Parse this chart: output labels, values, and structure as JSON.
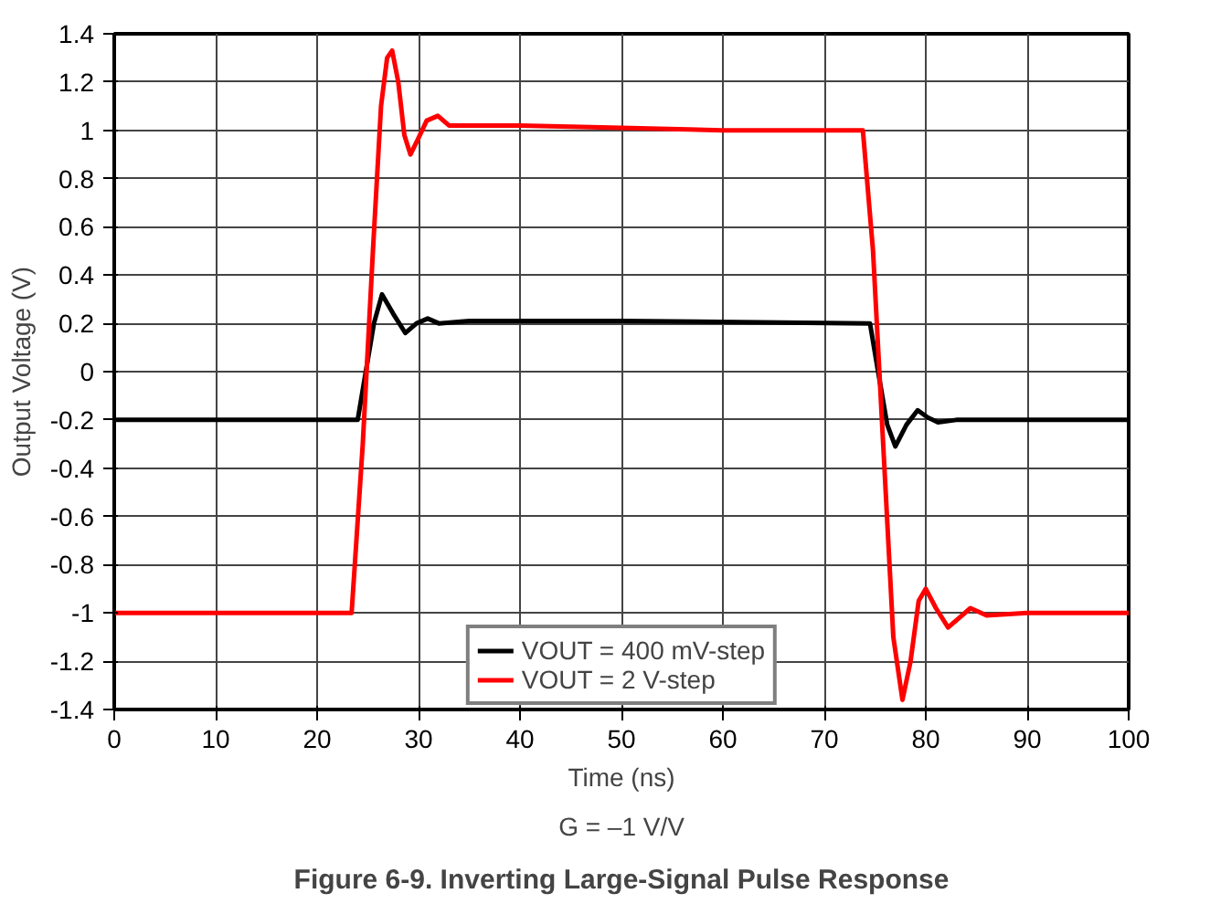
{
  "chart_data": {
    "type": "line",
    "title": "Figure 6-9. Inverting Large-Signal Pulse Response",
    "xlabel": "Time (ns)",
    "ylabel": "Output Voltage (V)",
    "annotations": [
      "G = –1 V/V"
    ],
    "xlim": [
      0,
      100
    ],
    "xticks": [
      0,
      10,
      20,
      30,
      40,
      50,
      60,
      70,
      80,
      90,
      100
    ],
    "ylim": [
      -1.4,
      1.4
    ],
    "yticks": [
      {
        "value": -1.4,
        "label": "-1.4"
      },
      {
        "value": -1.2,
        "label": "-1.2"
      },
      {
        "value": -1,
        "label": "-1"
      },
      {
        "value": -0.8,
        "label": "-0.8"
      },
      {
        "value": -0.6,
        "label": "-0.6"
      },
      {
        "value": -0.4,
        "label": "-0.4"
      },
      {
        "value": -0.2,
        "label": "-0.2"
      },
      0,
      {
        "value": 0.2,
        "label": "0.2"
      },
      {
        "value": 0.4,
        "label": "0.4"
      },
      {
        "value": 0.6,
        "label": "0.6"
      },
      {
        "value": 0.8,
        "label": "0.8"
      },
      1,
      {
        "value": 1.2,
        "label": "1.2"
      },
      {
        "value": 1.4,
        "label": "1.4"
      }
    ],
    "grid": true,
    "legend": "bottom",
    "marker": "none",
    "line_style": "solid",
    "series": [
      {
        "name": "VOUT = 400 mV-step",
        "color": "#000000",
        "x": [
          0,
          24.0,
          24.8,
          25.6,
          26.4,
          27.5,
          28.7,
          29.8,
          30.9,
          32,
          35,
          50,
          74.5,
          75.3,
          76.2,
          77.0,
          78.1,
          79.2,
          80.2,
          81.2,
          83,
          100
        ],
        "values": [
          -0.2,
          -0.2,
          0.0,
          0.2,
          0.32,
          0.24,
          0.16,
          0.2,
          0.22,
          0.2,
          0.21,
          0.21,
          0.2,
          0.0,
          -0.22,
          -0.31,
          -0.22,
          -0.16,
          -0.19,
          -0.21,
          -0.2,
          -0.2
        ]
      },
      {
        "name": "VOUT = 2 V-step",
        "color": "#ff0000",
        "x": [
          0,
          23.4,
          24.5,
          25.5,
          26.3,
          26.9,
          27.4,
          28.0,
          28.6,
          29.2,
          29.9,
          30.8,
          31.9,
          33,
          35,
          40,
          50,
          60,
          73.8,
          74.8,
          75.8,
          76.8,
          77.7,
          78.5,
          79.3,
          80,
          81,
          82.2,
          83.3,
          84.4,
          86,
          90,
          100
        ],
        "values": [
          -1,
          -1,
          -0.3,
          0.5,
          1.1,
          1.3,
          1.33,
          1.2,
          0.98,
          0.9,
          0.96,
          1.04,
          1.06,
          1.02,
          1.02,
          1.02,
          1.01,
          1.0,
          1.0,
          0.5,
          -0.3,
          -1.1,
          -1.36,
          -1.2,
          -0.95,
          -0.9,
          -0.98,
          -1.06,
          -1.02,
          -0.98,
          -1.01,
          -1.0,
          -1.0
        ]
      }
    ]
  }
}
